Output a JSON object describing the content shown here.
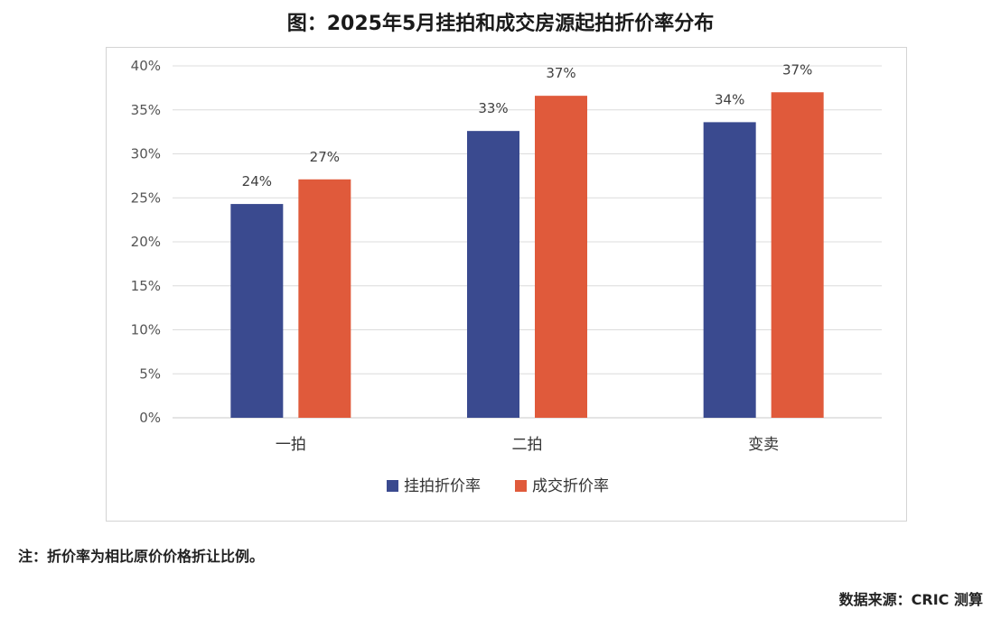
{
  "title": "图：2025年5月挂拍和成交房源起拍折价率分布",
  "note": "注：折价率为相比原价价格折让比例。",
  "source": "数据来源：CRIC 测算",
  "chart_data": {
    "type": "bar",
    "categories": [
      "一拍",
      "二拍",
      "变卖"
    ],
    "series": [
      {
        "name": "挂拍折价率",
        "values": [
          24.3,
          32.6,
          33.6
        ],
        "labels": [
          "24%",
          "33%",
          "34%"
        ],
        "color": "#3a4a8f"
      },
      {
        "name": "成交折价率",
        "values": [
          27.1,
          36.6,
          37.0
        ],
        "labels": [
          "27%",
          "37%",
          "37%"
        ],
        "color": "#e05a3b"
      }
    ],
    "ylim": [
      0,
      40
    ],
    "yticks": [
      "0%",
      "5%",
      "10%",
      "15%",
      "20%",
      "25%",
      "30%",
      "35%",
      "40%"
    ],
    "ytick_values": [
      0,
      5,
      10,
      15,
      20,
      25,
      30,
      35,
      40
    ],
    "grid": true,
    "legend_position": "bottom"
  }
}
